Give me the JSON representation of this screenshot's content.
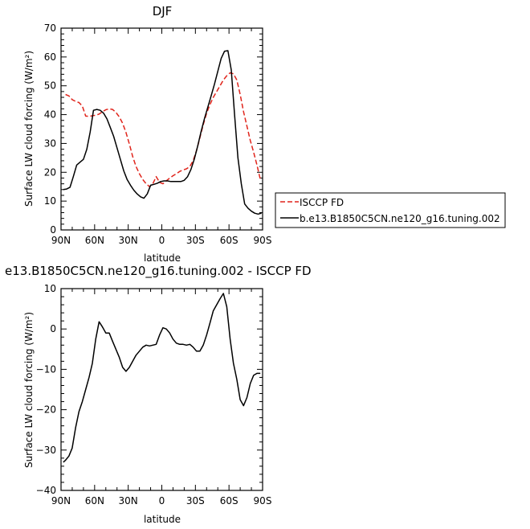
{
  "chart_data": [
    {
      "type": "line",
      "title": "DJF",
      "xlabel": "latitude",
      "ylabel": "Surface LW cloud forcing (W/m²)",
      "ylim": [
        0,
        70
      ],
      "xlim": [
        -90,
        90
      ],
      "x_ticks": [
        -90,
        -60,
        -30,
        0,
        30,
        60,
        90
      ],
      "x_tick_labels": [
        "90N",
        "60N",
        "30N",
        "0",
        "30S",
        "60S",
        "90S"
      ],
      "y_ticks": [
        0,
        10,
        20,
        30,
        40,
        50,
        60,
        70
      ],
      "y_tick_labels": [
        "0",
        "10",
        "20",
        "30",
        "40",
        "50",
        "60",
        "70"
      ],
      "legend_position": "right",
      "series": [
        {
          "name": "ISCCP FD",
          "color": "#e0241b",
          "dash": "dashed",
          "x": [
            -86,
            -83,
            -80,
            -77,
            -74,
            -71,
            -68,
            -65,
            -62,
            -59,
            -56,
            -53,
            -50,
            -47,
            -44,
            -41,
            -38,
            -35,
            -32,
            -29,
            -26,
            -23,
            -20,
            -17,
            -14,
            -11,
            -8,
            -5,
            -2,
            1,
            4,
            7,
            10,
            13,
            16,
            19,
            22,
            25,
            28,
            31,
            34,
            37,
            40,
            43,
            46,
            49,
            52,
            55,
            58,
            61,
            64,
            67,
            70,
            73,
            76,
            79,
            82,
            85,
            88
          ],
          "values": [
            47,
            46.5,
            45.2,
            44.6,
            44.2,
            43.0,
            39.5,
            39.4,
            39.6,
            39.8,
            40.2,
            41.0,
            41.7,
            42.0,
            41.8,
            40.8,
            39.2,
            37.0,
            33.8,
            29.8,
            25.5,
            22.0,
            19.5,
            17.5,
            16.0,
            15.0,
            16.0,
            18.5,
            16.5,
            16.0,
            17.0,
            18.0,
            18.8,
            19.5,
            20.3,
            20.8,
            21.2,
            22.0,
            24.0,
            27.5,
            32.0,
            36.5,
            40.5,
            43.5,
            46.0,
            48.0,
            50.0,
            52.0,
            53.5,
            54.5,
            54.2,
            52.0,
            47.0,
            41.0,
            36.0,
            31.0,
            27.0,
            22.5,
            17.5
          ]
        },
        {
          "name": "b.e13.B1850C5CN.ne120_g16.tuning.002",
          "color": "#000000",
          "dash": "solid",
          "x": [
            -88,
            -85,
            -82,
            -79,
            -76,
            -73,
            -70,
            -67,
            -64,
            -61,
            -58,
            -55,
            -52,
            -49,
            -46,
            -43,
            -40,
            -37,
            -34,
            -31,
            -28,
            -25,
            -22,
            -19,
            -16,
            -13,
            -10,
            -7,
            -4,
            -1,
            2,
            5,
            8,
            11,
            14,
            17,
            20,
            23,
            26,
            29,
            32,
            35,
            38,
            41,
            44,
            47,
            50,
            53,
            56,
            59,
            62,
            65,
            68,
            71,
            74,
            77,
            80,
            83,
            86,
            89
          ],
          "values": [
            14.0,
            14.2,
            14.8,
            18.5,
            22.5,
            23.5,
            24.5,
            28.0,
            34.0,
            41.5,
            41.8,
            41.5,
            40.5,
            38.5,
            35.5,
            32.5,
            28.5,
            24.5,
            20.5,
            17.5,
            15.5,
            13.8,
            12.5,
            11.5,
            11.0,
            12.5,
            15.5,
            15.8,
            16.2,
            16.8,
            17.0,
            17.0,
            16.8,
            16.8,
            16.8,
            16.8,
            17.2,
            18.5,
            21.0,
            24.5,
            29.0,
            34.0,
            38.5,
            42.5,
            46.5,
            50.5,
            55.0,
            59.5,
            62.0,
            62.2,
            55.5,
            40.0,
            25.0,
            16.0,
            9.0,
            7.5,
            6.5,
            5.8,
            5.5,
            5.8
          ]
        }
      ]
    },
    {
      "type": "line",
      "title": "e13.B1850C5CN.ne120_g16.tuning.002 - ISCCP FD",
      "xlabel": "latitude",
      "ylabel": "Surface LW cloud forcing (W/m²)",
      "ylim": [
        -40,
        10
      ],
      "xlim": [
        -90,
        90
      ],
      "x_ticks": [
        -90,
        -60,
        -30,
        0,
        30,
        60,
        90
      ],
      "x_tick_labels": [
        "90N",
        "60N",
        "30N",
        "0",
        "30S",
        "60S",
        "90S"
      ],
      "y_ticks": [
        -40,
        -30,
        -20,
        -10,
        0,
        10
      ],
      "y_tick_labels": [
        "−40",
        "−30",
        "−20",
        "−10",
        "0",
        "10"
      ],
      "series": [
        {
          "color": "#000000",
          "dash": "solid",
          "x": [
            -88,
            -86,
            -83,
            -80,
            -77,
            -74,
            -71,
            -68,
            -65,
            -62,
            -59,
            -56,
            -53,
            -50,
            -47,
            -44,
            -41,
            -38,
            -35,
            -32,
            -29,
            -26,
            -23,
            -20,
            -17,
            -14,
            -11,
            -8,
            -5,
            -2,
            1,
            4,
            7,
            10,
            13,
            16,
            19,
            22,
            25,
            28,
            31,
            34,
            37,
            40,
            43,
            46,
            49,
            52,
            55,
            58,
            61,
            64,
            67,
            70,
            73,
            76,
            79,
            82,
            85,
            88
          ],
          "values": [
            -33.0,
            -32.5,
            -31.5,
            -29.5,
            -24.5,
            -20.5,
            -18.0,
            -15.0,
            -12.0,
            -8.5,
            -2.5,
            1.8,
            0.5,
            -1.0,
            -1.0,
            -3.0,
            -5.0,
            -7.0,
            -9.5,
            -10.5,
            -9.5,
            -8.0,
            -6.5,
            -5.5,
            -4.5,
            -4.0,
            -4.2,
            -4.0,
            -3.8,
            -1.5,
            0.3,
            0.0,
            -1.0,
            -2.5,
            -3.5,
            -3.8,
            -3.8,
            -4.0,
            -3.8,
            -4.5,
            -5.5,
            -5.5,
            -4.0,
            -1.5,
            1.5,
            4.5,
            6.0,
            7.5,
            8.8,
            5.5,
            -2.5,
            -8.5,
            -12.5,
            -17.5,
            -19.0,
            -17.0,
            -13.5,
            -11.5,
            -11.0,
            -11.0
          ]
        }
      ]
    }
  ]
}
